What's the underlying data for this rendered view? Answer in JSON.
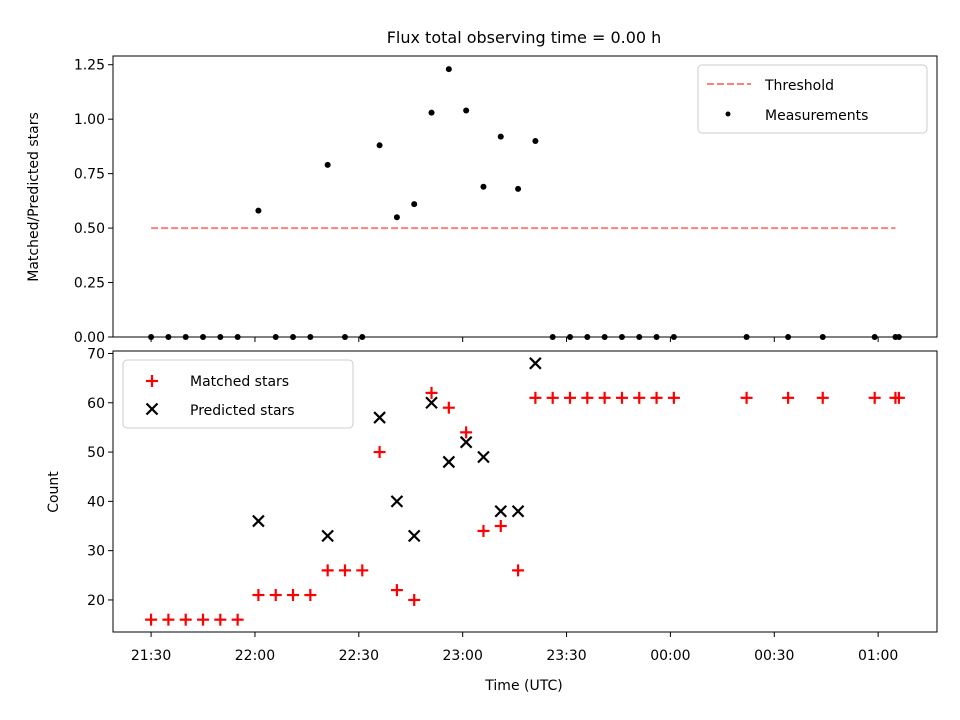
{
  "chart_data": [
    {
      "type": "scatter",
      "title": "Flux total observing time = 0.00 h",
      "xlabel": "",
      "ylabel": "Matched/Predicted stars",
      "ylim": [
        0,
        1.29
      ],
      "yticks": [
        "0.00",
        "0.25",
        "0.50",
        "0.75",
        "1.00",
        "1.25"
      ],
      "legend_position": "upper right",
      "threshold": {
        "name": "Threshold",
        "value": 0.5,
        "x_start": "21:30",
        "x_end": "01:05",
        "color": "#ff7f7f",
        "style": "dashed"
      },
      "series": [
        {
          "name": "Measurements",
          "color": "#000000",
          "x": [
            "21:30",
            "21:35",
            "21:40",
            "21:45",
            "21:50",
            "21:55",
            "22:01",
            "22:06",
            "22:11",
            "22:16",
            "22:21",
            "22:26",
            "22:31",
            "22:36",
            "22:41",
            "22:46",
            "22:51",
            "22:56",
            "23:01",
            "23:06",
            "23:11",
            "23:16",
            "23:21",
            "23:26",
            "23:31",
            "23:36",
            "23:41",
            "23:46",
            "23:51",
            "23:56",
            "00:01",
            "00:22",
            "00:34",
            "00:44",
            "00:59",
            "01:05",
            "01:06"
          ],
          "y": [
            0,
            0,
            0,
            0,
            0,
            0,
            0.58,
            0,
            0,
            0,
            0.79,
            0,
            0,
            0.88,
            0.55,
            0.61,
            1.03,
            1.23,
            1.04,
            0.69,
            0.92,
            0.68,
            0.9,
            0,
            0,
            0,
            0,
            0,
            0,
            0,
            0,
            0,
            0,
            0,
            0,
            0,
            0
          ]
        }
      ]
    },
    {
      "type": "scatter",
      "title": "",
      "xlabel": "Time (UTC)",
      "ylabel": "Count",
      "ylim": [
        13.5,
        70.5
      ],
      "yticks": [
        "20",
        "30",
        "40",
        "50",
        "60",
        "70"
      ],
      "xticks": [
        "21:30",
        "22:00",
        "22:30",
        "23:00",
        "23:30",
        "00:00",
        "00:30",
        "01:00"
      ],
      "xlim": [
        "21:19",
        "01:17"
      ],
      "legend_position": "upper left",
      "series": [
        {
          "name": "Matched stars",
          "marker": "plus",
          "color": "#ff0000",
          "x": [
            "21:30",
            "21:35",
            "21:40",
            "21:45",
            "21:50",
            "21:55",
            "22:01",
            "22:06",
            "22:11",
            "22:16",
            "22:21",
            "22:26",
            "22:31",
            "22:36",
            "22:41",
            "22:46",
            "22:51",
            "22:56",
            "23:01",
            "23:06",
            "23:11",
            "23:16",
            "23:21",
            "23:26",
            "23:31",
            "23:36",
            "23:41",
            "23:46",
            "23:51",
            "23:56",
            "00:01",
            "00:22",
            "00:34",
            "00:44",
            "00:59",
            "01:05",
            "01:06"
          ],
          "y": [
            16,
            16,
            16,
            16,
            16,
            16,
            21,
            21,
            21,
            21,
            26,
            26,
            26,
            50,
            22,
            20,
            62,
            59,
            54,
            34,
            35,
            26,
            61,
            61,
            61,
            61,
            61,
            61,
            61,
            61,
            61,
            61,
            61,
            61,
            61,
            61,
            61
          ]
        },
        {
          "name": "Predicted stars",
          "marker": "x",
          "color": "#000000",
          "x": [
            "22:01",
            "22:21",
            "22:36",
            "22:41",
            "22:46",
            "22:51",
            "22:56",
            "23:01",
            "23:06",
            "23:11",
            "23:16",
            "23:21"
          ],
          "y": [
            36,
            33,
            57,
            40,
            33,
            60,
            48,
            52,
            49,
            38,
            38,
            68
          ]
        }
      ]
    }
  ]
}
